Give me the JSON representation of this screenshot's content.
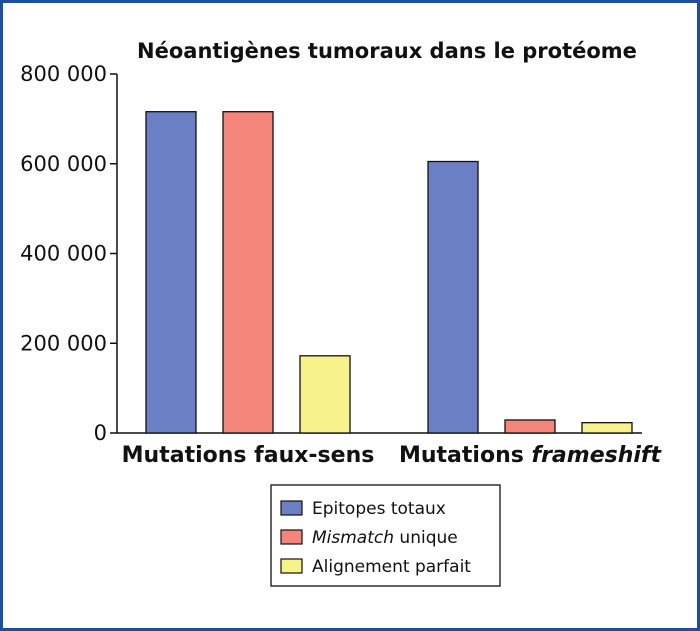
{
  "chart_data": {
    "type": "bar",
    "title": "Néoantigènes tumoraux dans le protéome",
    "categories": [
      {
        "prefix": "Mutations faux-sens",
        "emph": ""
      },
      {
        "prefix": "Mutations ",
        "emph": "frameshift"
      }
    ],
    "series": [
      {
        "name": {
          "prefix": "",
          "emph": "",
          "suffix": "Epitopes totaux"
        },
        "color": "#6b7fc4",
        "values": [
          716000,
          605000
        ]
      },
      {
        "name": {
          "prefix": "",
          "emph": "Mismatch",
          "suffix": " unique"
        },
        "color": "#f4857a",
        "values": [
          716000,
          29000
        ]
      },
      {
        "name": {
          "prefix": "",
          "emph": "",
          "suffix": "Alignement parfait"
        },
        "color": "#f7f28a",
        "values": [
          172000,
          23000
        ]
      }
    ],
    "ylim": [
      0,
      800000
    ],
    "yticks": [
      0,
      200000,
      400000,
      600000,
      800000
    ],
    "ytick_labels": [
      "0",
      "200 000",
      "400 000",
      "600 000",
      "800 000"
    ],
    "legend": "bottom-center",
    "grid": false
  }
}
